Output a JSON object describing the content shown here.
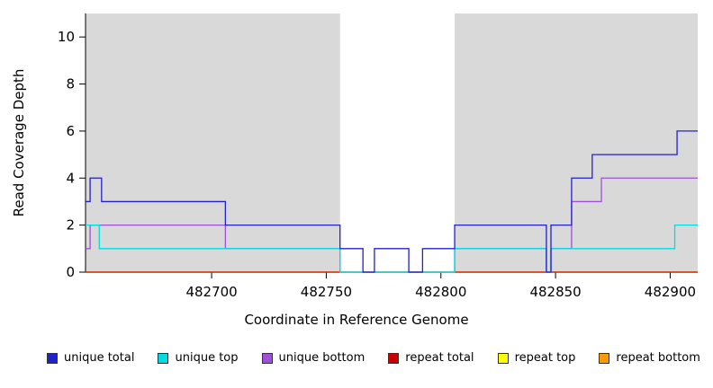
{
  "chart_data": {
    "type": "line",
    "step": true,
    "title": "",
    "xlabel": "Coordinate in Reference Genome",
    "ylabel": "Read Coverage Depth",
    "xlim": [
      482645,
      482912
    ],
    "ylim": [
      0,
      11
    ],
    "xticks": [
      482700,
      482750,
      482800,
      482850,
      482900
    ],
    "yticks": [
      0,
      2,
      4,
      6,
      8,
      10
    ],
    "grid": false,
    "legend_position": "bottom",
    "panel_color": "#d9d9d9",
    "highlight_region": {
      "x0": 482756,
      "x1": 482806,
      "color": "#ffffff"
    },
    "series": [
      {
        "name": "unique total",
        "color": "#2222cc",
        "points": [
          [
            482645,
            3
          ],
          [
            482647,
            4
          ],
          [
            482652,
            3
          ],
          [
            482706,
            2
          ],
          [
            482756,
            1
          ],
          [
            482766,
            0
          ],
          [
            482771,
            1
          ],
          [
            482786,
            0
          ],
          [
            482792,
            1
          ],
          [
            482806,
            2
          ],
          [
            482846,
            0
          ],
          [
            482848,
            2
          ],
          [
            482857,
            4
          ],
          [
            482866,
            5
          ],
          [
            482903,
            6
          ],
          [
            482912,
            6
          ]
        ]
      },
      {
        "name": "unique top",
        "color": "#00dde0",
        "points": [
          [
            482645,
            2
          ],
          [
            482651,
            1
          ],
          [
            482756,
            0
          ],
          [
            482806,
            1
          ],
          [
            482846,
            0
          ],
          [
            482848,
            1
          ],
          [
            482902,
            2
          ],
          [
            482912,
            2
          ]
        ]
      },
      {
        "name": "unique bottom",
        "color": "#a050d8",
        "points": [
          [
            482645,
            1
          ],
          [
            482647,
            2
          ],
          [
            482706,
            1
          ],
          [
            482756,
            0
          ],
          [
            482806,
            1
          ],
          [
            482846,
            0
          ],
          [
            482848,
            1
          ],
          [
            482857,
            3
          ],
          [
            482870,
            4
          ],
          [
            482912,
            4
          ]
        ]
      },
      {
        "name": "repeat total",
        "color": "#cc0000",
        "points": [
          [
            482645,
            0
          ],
          [
            482912,
            0
          ]
        ]
      },
      {
        "name": "repeat top",
        "color": "#ffff00",
        "points": [
          [
            482645,
            0
          ],
          [
            482912,
            0
          ]
        ]
      },
      {
        "name": "repeat bottom",
        "color": "#ff9900",
        "points": [
          [
            482645,
            0
          ],
          [
            482912,
            0
          ]
        ]
      }
    ]
  }
}
